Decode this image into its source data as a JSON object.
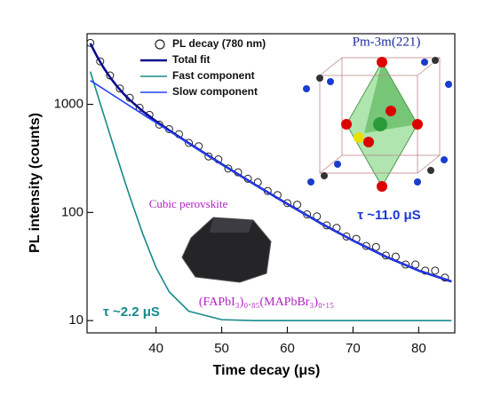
{
  "chart_data": {
    "type": "line",
    "xlabel": "Time decay (μs)",
    "ylabel": "PL intensity (counts)",
    "xlim": [
      29.5,
      85.5
    ],
    "xticks": [
      40,
      50,
      60,
      70,
      80
    ],
    "ylim": [
      7.7,
      4500
    ],
    "yticks": [
      10,
      100,
      1000
    ],
    "yscale": "log",
    "legend": "top",
    "series": [
      {
        "name": "PL decay (780 nm)",
        "type": "scatter",
        "color": "#222222",
        "x": [
          30,
          31.5,
          33,
          34.5,
          36,
          37.5,
          39,
          40.5,
          42,
          43.5,
          45,
          46.5,
          48,
          49.5,
          51,
          52.5,
          54,
          55.5,
          57,
          58.5,
          60,
          61.5,
          63,
          64.5,
          66,
          67.5,
          69,
          70.5,
          72,
          73.5,
          75,
          76.5,
          78,
          79.5,
          81,
          82.5,
          84
        ],
        "values": [
          3700,
          2500,
          1850,
          1400,
          1150,
          930,
          800,
          650,
          590,
          530,
          440,
          410,
          330,
          310,
          255,
          235,
          205,
          190,
          158,
          145,
          122,
          118,
          96,
          92,
          76,
          72,
          60,
          57,
          49,
          48,
          40,
          39,
          33,
          33,
          29,
          29,
          25
        ]
      },
      {
        "name": "Total fit",
        "type": "line",
        "color": "#0b0b8c",
        "x": [
          30,
          31,
          32,
          33,
          34,
          35,
          36,
          38,
          40,
          42,
          45,
          50,
          55,
          60,
          65,
          70,
          75,
          80,
          85
        ],
        "values": [
          3662,
          2789,
          2194,
          1779,
          1484,
          1265,
          1099,
          862,
          698,
          575,
          437,
          280,
          182,
          120,
          80,
          55,
          39,
          29,
          23
        ]
      },
      {
        "name": "Fast component",
        "type": "line",
        "color": "#17898a",
        "x": [
          30,
          31,
          32,
          33,
          34,
          35,
          36,
          38,
          40,
          42,
          45,
          50,
          55,
          60,
          65,
          70,
          75,
          80,
          85
        ],
        "values": [
          2010,
          1280,
          816,
          521,
          335,
          216,
          141,
          63,
          31,
          18.5,
          12.2,
          10.2,
          10,
          10,
          10,
          10,
          10,
          10,
          10
        ]
      },
      {
        "name": "Slow component",
        "type": "line",
        "color": "#2340ff",
        "x": [
          30,
          31,
          32,
          33,
          34,
          35,
          36,
          38,
          40,
          42,
          45,
          50,
          55,
          60,
          65,
          70,
          75,
          80,
          85
        ],
        "values": [
          1662,
          1519,
          1388,
          1268,
          1159,
          1059,
          968,
          809,
          677,
          566,
          435,
          280,
          182,
          120,
          80,
          55,
          39,
          29,
          23
        ]
      }
    ],
    "annotations": {
      "space_group": "Pm-3m(221)",
      "tau_slow": "τ ~11.0 μS",
      "tau_fast": "τ ~2.2 μS",
      "crystal": "Cubic perovskite",
      "formula": "(FAPbI₃)₀.₈₅(MAPbBr₃)₀.₁₅"
    }
  }
}
